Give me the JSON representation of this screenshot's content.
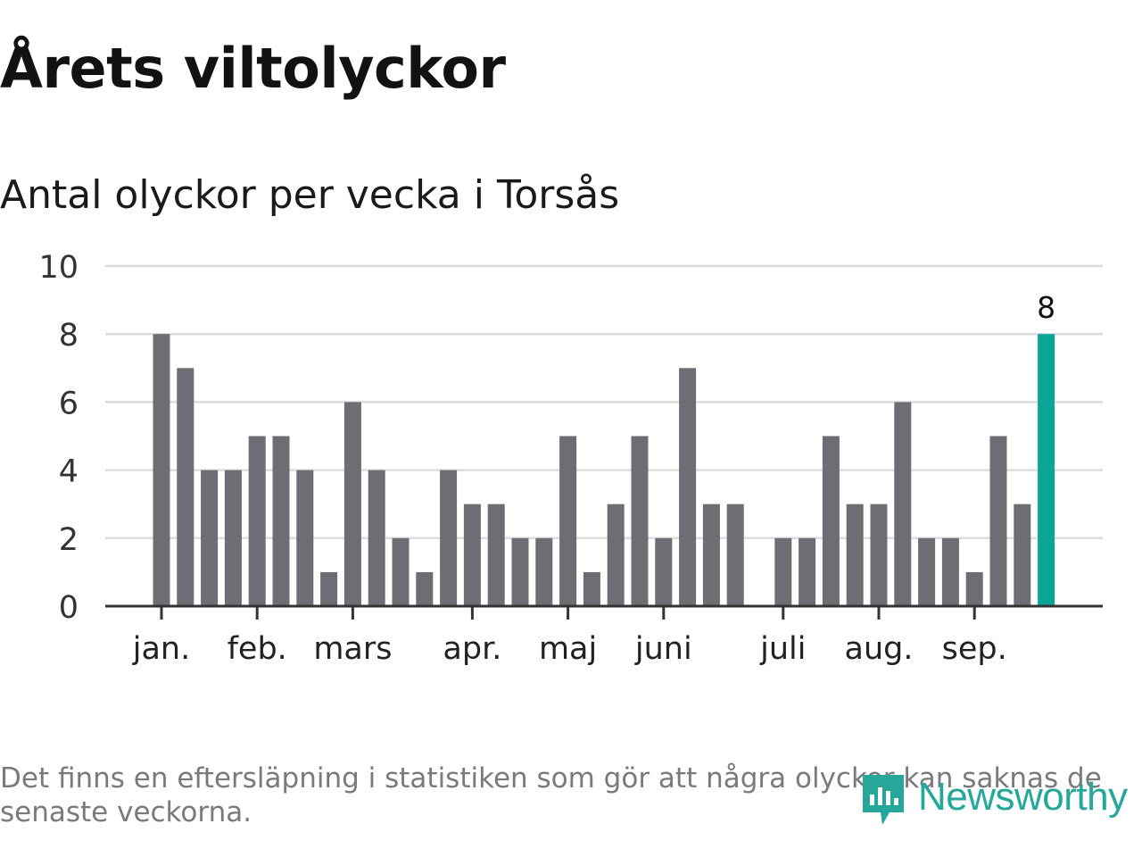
{
  "header": {
    "title": "Årets viltolyckor",
    "subtitle": "Antal olyckor per vecka i Torsås"
  },
  "footnote": "Det finns en eftersläpning i statistiken som gör att några olyckor kan saknas de senaste veckorna.",
  "brand": {
    "name": "Newsworthy",
    "icon": "newsworthy-logo-icon"
  },
  "colors": {
    "bar": "#6e6d73",
    "highlight": "#0aa597",
    "grid": "#dddddd",
    "axis": "#333333",
    "brand": "#25a79a"
  },
  "chart_data": {
    "type": "bar",
    "x_unit": "week",
    "weeks": [
      1,
      2,
      3,
      4,
      5,
      6,
      7,
      8,
      9,
      10,
      11,
      12,
      13,
      14,
      15,
      16,
      17,
      18,
      19,
      20,
      21,
      22,
      23,
      24,
      25,
      26,
      27,
      28,
      29,
      30,
      31,
      32,
      33,
      34,
      35,
      36,
      37,
      38
    ],
    "values": [
      8,
      7,
      4,
      4,
      5,
      5,
      4,
      1,
      6,
      4,
      2,
      1,
      4,
      3,
      3,
      2,
      2,
      5,
      1,
      3,
      5,
      2,
      7,
      3,
      3,
      0,
      2,
      2,
      5,
      3,
      3,
      6,
      2,
      2,
      1,
      5,
      3,
      8
    ],
    "highlight_index": 37,
    "highlight_label": "8",
    "y_ticks": [
      0,
      2,
      4,
      6,
      8,
      10
    ],
    "ylim": [
      0,
      10
    ],
    "month_ticks": [
      {
        "label": "jan.",
        "at_week": 1
      },
      {
        "label": "feb.",
        "at_week": 5
      },
      {
        "label": "mars",
        "at_week": 9
      },
      {
        "label": "apr.",
        "at_week": 14
      },
      {
        "label": "maj",
        "at_week": 18
      },
      {
        "label": "juni",
        "at_week": 22
      },
      {
        "label": "juli",
        "at_week": 27
      },
      {
        "label": "aug.",
        "at_week": 31
      },
      {
        "label": "sep.",
        "at_week": 35
      }
    ],
    "grid": true,
    "title": "Årets viltolyckor",
    "subtitle": "Antal olyckor per vecka i Torsås"
  }
}
